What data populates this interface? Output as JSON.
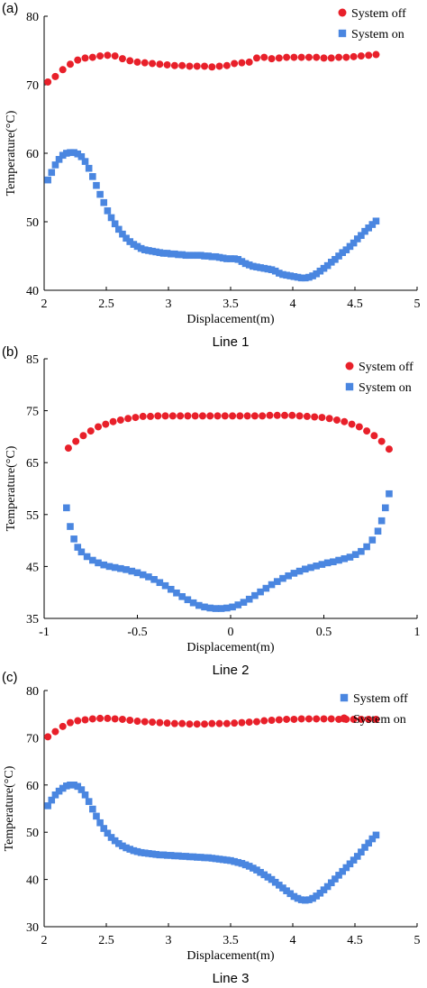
{
  "colors": {
    "red": "#e8202a",
    "blue": "#4a86e0",
    "axis": "#000000"
  },
  "chart_data": [
    {
      "type": "scatter",
      "panel_label": "(a)",
      "caption": "Line 1",
      "xlabel": "Displacement(m)",
      "ylabel": "Temperature(°C)",
      "xlim": [
        2,
        5
      ],
      "ylim": [
        40,
        80
      ],
      "xticks": [
        2,
        2.5,
        3,
        3.5,
        4,
        4.5,
        5
      ],
      "xtick_labels": [
        "2",
        "2.5",
        "3",
        "3.5",
        "4",
        "4.5",
        "5"
      ],
      "yticks": [
        40,
        50,
        60,
        70,
        80
      ],
      "ytick_labels": [
        "40",
        "50",
        "60",
        "70",
        "80"
      ],
      "legend_position": "top-right",
      "series": [
        {
          "name": "System off",
          "marker": "circle",
          "color": "#e8202a",
          "x": [
            2.03,
            2.09,
            2.15,
            2.21,
            2.27,
            2.33,
            2.39,
            2.45,
            2.51,
            2.57,
            2.63,
            2.69,
            2.75,
            2.81,
            2.87,
            2.93,
            2.99,
            3.05,
            3.11,
            3.17,
            3.23,
            3.29,
            3.35,
            3.41,
            3.47,
            3.53,
            3.59,
            3.65,
            3.71,
            3.77,
            3.83,
            3.89,
            3.95,
            4.01,
            4.07,
            4.13,
            4.19,
            4.25,
            4.31,
            4.37,
            4.43,
            4.49,
            4.55,
            4.61,
            4.67
          ],
          "y": [
            70.4,
            71.2,
            72.2,
            73.0,
            73.6,
            73.9,
            74.0,
            74.2,
            74.3,
            74.2,
            73.8,
            73.5,
            73.3,
            73.2,
            73.1,
            73.0,
            72.9,
            72.8,
            72.8,
            72.7,
            72.7,
            72.7,
            72.6,
            72.7,
            72.8,
            73.1,
            73.2,
            73.3,
            73.9,
            74.0,
            73.8,
            73.9,
            74.0,
            74.0,
            74.0,
            74.0,
            74.0,
            73.9,
            73.9,
            74.0,
            74.0,
            74.1,
            74.2,
            74.3,
            74.4
          ]
        },
        {
          "name": "System on",
          "marker": "square",
          "color": "#4a86e0",
          "x": [
            2.03,
            2.06,
            2.09,
            2.12,
            2.15,
            2.18,
            2.21,
            2.24,
            2.27,
            2.3,
            2.33,
            2.36,
            2.39,
            2.42,
            2.45,
            2.48,
            2.51,
            2.54,
            2.57,
            2.6,
            2.63,
            2.66,
            2.69,
            2.72,
            2.75,
            2.78,
            2.81,
            2.84,
            2.87,
            2.9,
            2.93,
            2.96,
            2.99,
            3.02,
            3.05,
            3.08,
            3.11,
            3.14,
            3.17,
            3.2,
            3.23,
            3.26,
            3.29,
            3.32,
            3.35,
            3.38,
            3.41,
            3.44,
            3.47,
            3.5,
            3.53,
            3.56,
            3.59,
            3.62,
            3.65,
            3.68,
            3.71,
            3.74,
            3.77,
            3.8,
            3.83,
            3.86,
            3.89,
            3.92,
            3.95,
            3.98,
            4.01,
            4.04,
            4.07,
            4.1,
            4.13,
            4.16,
            4.19,
            4.22,
            4.25,
            4.28,
            4.31,
            4.34,
            4.37,
            4.4,
            4.43,
            4.46,
            4.49,
            4.52,
            4.55,
            4.58,
            4.61,
            4.64,
            4.67
          ],
          "y": [
            56.1,
            57.2,
            58.3,
            59.1,
            59.7,
            60.0,
            60.1,
            60.1,
            59.9,
            59.5,
            58.8,
            57.8,
            56.6,
            55.3,
            54.0,
            52.8,
            51.6,
            50.6,
            49.7,
            48.9,
            48.2,
            47.6,
            47.1,
            46.7,
            46.4,
            46.1,
            45.9,
            45.8,
            45.7,
            45.6,
            45.5,
            45.4,
            45.4,
            45.3,
            45.3,
            45.2,
            45.2,
            45.1,
            45.1,
            45.1,
            45.1,
            45.1,
            45.0,
            45.0,
            44.9,
            44.9,
            44.8,
            44.7,
            44.6,
            44.6,
            44.6,
            44.5,
            44.2,
            43.9,
            43.7,
            43.5,
            43.4,
            43.3,
            43.2,
            43.1,
            43.0,
            42.8,
            42.5,
            42.3,
            42.2,
            42.1,
            42.0,
            41.9,
            41.8,
            41.8,
            41.9,
            42.1,
            42.4,
            42.8,
            43.2,
            43.6,
            44.1,
            44.5,
            45.0,
            45.5,
            45.9,
            46.4,
            46.9,
            47.5,
            48.0,
            48.6,
            49.1,
            49.6,
            50.1
          ]
        }
      ]
    },
    {
      "type": "scatter",
      "panel_label": "(b)",
      "caption": "Line 2",
      "xlabel": "Displacement(m)",
      "ylabel": "Temperature(°C)",
      "xlim": [
        -1,
        1
      ],
      "ylim": [
        35,
        85
      ],
      "xticks": [
        -1,
        -0.5,
        0,
        0.5,
        1
      ],
      "xtick_labels": [
        "-1",
        "-0.5",
        "0",
        "0.5",
        "1"
      ],
      "yticks": [
        35,
        45,
        55,
        65,
        75,
        85
      ],
      "ytick_labels": [
        "35",
        "45",
        "55",
        "65",
        "75",
        "85"
      ],
      "legend_position": "top-right",
      "series": [
        {
          "name": "System off",
          "marker": "circle",
          "color": "#e8202a",
          "x": [
            -0.87,
            -0.83,
            -0.79,
            -0.75,
            -0.71,
            -0.67,
            -0.63,
            -0.59,
            -0.55,
            -0.51,
            -0.47,
            -0.43,
            -0.39,
            -0.35,
            -0.31,
            -0.27,
            -0.23,
            -0.19,
            -0.15,
            -0.11,
            -0.07,
            -0.03,
            0.01,
            0.05,
            0.09,
            0.13,
            0.17,
            0.21,
            0.25,
            0.29,
            0.33,
            0.37,
            0.41,
            0.45,
            0.49,
            0.53,
            0.57,
            0.61,
            0.65,
            0.69,
            0.73,
            0.77,
            0.81,
            0.85
          ],
          "y": [
            67.8,
            69.1,
            70.2,
            71.1,
            71.9,
            72.4,
            72.9,
            73.2,
            73.5,
            73.7,
            73.9,
            73.9,
            74.0,
            74.0,
            74.0,
            74.0,
            74.0,
            74.0,
            74.0,
            74.0,
            74.0,
            74.0,
            74.0,
            74.0,
            74.0,
            74.0,
            74.0,
            74.1,
            74.1,
            74.1,
            74.1,
            74.0,
            73.9,
            73.8,
            73.7,
            73.5,
            73.2,
            72.9,
            72.4,
            71.9,
            71.1,
            70.2,
            69.1,
            67.6
          ]
        },
        {
          "name": "System on",
          "marker": "square",
          "color": "#4a86e0",
          "x": [
            -0.88,
            -0.86,
            -0.84,
            -0.82,
            -0.8,
            -0.77,
            -0.74,
            -0.71,
            -0.68,
            -0.65,
            -0.62,
            -0.59,
            -0.56,
            -0.53,
            -0.5,
            -0.47,
            -0.44,
            -0.41,
            -0.38,
            -0.35,
            -0.32,
            -0.29,
            -0.26,
            -0.23,
            -0.2,
            -0.17,
            -0.14,
            -0.11,
            -0.08,
            -0.05,
            -0.02,
            0.01,
            0.04,
            0.07,
            0.1,
            0.13,
            0.16,
            0.19,
            0.22,
            0.25,
            0.28,
            0.31,
            0.34,
            0.37,
            0.4,
            0.43,
            0.46,
            0.49,
            0.52,
            0.55,
            0.58,
            0.61,
            0.64,
            0.67,
            0.7,
            0.73,
            0.76,
            0.79,
            0.81,
            0.83,
            0.85
          ],
          "y": [
            56.3,
            52.7,
            50.3,
            48.7,
            47.8,
            46.9,
            46.2,
            45.7,
            45.3,
            45.0,
            44.8,
            44.6,
            44.4,
            44.1,
            43.8,
            43.4,
            43.0,
            42.5,
            41.9,
            41.3,
            40.6,
            39.9,
            39.2,
            38.6,
            38.0,
            37.5,
            37.2,
            37.0,
            36.9,
            36.9,
            37.0,
            37.2,
            37.6,
            38.1,
            38.7,
            39.4,
            40.1,
            40.8,
            41.5,
            42.1,
            42.7,
            43.2,
            43.7,
            44.1,
            44.5,
            44.8,
            45.1,
            45.4,
            45.7,
            45.9,
            46.2,
            46.5,
            46.8,
            47.3,
            47.9,
            48.8,
            50.1,
            51.8,
            53.8,
            56.3,
            59.0
          ]
        }
      ]
    },
    {
      "type": "scatter",
      "panel_label": "(c)",
      "caption": "Line 3",
      "xlabel": "Displacement(m)",
      "ylabel": "Temperature(°C)",
      "xlim": [
        2,
        5
      ],
      "ylim": [
        30,
        80
      ],
      "xticks": [
        2,
        2.5,
        3,
        3.5,
        4,
        4.5,
        5
      ],
      "xtick_labels": [
        "2",
        "2.5",
        "3",
        "3.5",
        "4",
        "4.5",
        "5"
      ],
      "yticks": [
        30,
        40,
        50,
        60,
        70,
        80
      ],
      "ytick_labels": [
        "30",
        "40",
        "50",
        "60",
        "70",
        "80"
      ],
      "legend_position": "top-right",
      "series": [
        {
          "name": "System off",
          "marker": "square",
          "color": "#4a86e0",
          "x": [
            2.03,
            2.06,
            2.09,
            2.12,
            2.15,
            2.18,
            2.21,
            2.24,
            2.27,
            2.3,
            2.33,
            2.36,
            2.39,
            2.42,
            2.45,
            2.48,
            2.51,
            2.54,
            2.57,
            2.6,
            2.63,
            2.66,
            2.69,
            2.72,
            2.75,
            2.78,
            2.81,
            2.84,
            2.87,
            2.9,
            2.93,
            2.96,
            2.99,
            3.02,
            3.05,
            3.08,
            3.11,
            3.14,
            3.17,
            3.2,
            3.23,
            3.26,
            3.29,
            3.32,
            3.35,
            3.38,
            3.41,
            3.44,
            3.47,
            3.5,
            3.53,
            3.56,
            3.59,
            3.62,
            3.65,
            3.68,
            3.71,
            3.74,
            3.77,
            3.8,
            3.83,
            3.86,
            3.89,
            3.92,
            3.95,
            3.98,
            4.01,
            4.04,
            4.07,
            4.1,
            4.13,
            4.16,
            4.19,
            4.22,
            4.25,
            4.28,
            4.31,
            4.34,
            4.37,
            4.4,
            4.43,
            4.46,
            4.49,
            4.52,
            4.55,
            4.58,
            4.61,
            4.64,
            4.67
          ],
          "y": [
            55.6,
            56.8,
            57.9,
            58.7,
            59.3,
            59.8,
            60.0,
            60.0,
            59.7,
            59.0,
            57.9,
            56.5,
            54.9,
            53.4,
            52.0,
            50.8,
            49.8,
            48.9,
            48.2,
            47.6,
            47.1,
            46.7,
            46.4,
            46.1,
            45.9,
            45.7,
            45.6,
            45.5,
            45.4,
            45.3,
            45.2,
            45.2,
            45.1,
            45.1,
            45.0,
            45.0,
            44.9,
            44.9,
            44.8,
            44.8,
            44.7,
            44.7,
            44.6,
            44.6,
            44.5,
            44.4,
            44.3,
            44.2,
            44.1,
            44.0,
            43.8,
            43.6,
            43.4,
            43.1,
            42.8,
            42.4,
            42.0,
            41.5,
            41.0,
            40.5,
            40.0,
            39.4,
            38.8,
            38.2,
            37.6,
            37.0,
            36.4,
            36.0,
            35.7,
            35.6,
            35.7,
            36.0,
            36.5,
            37.1,
            37.8,
            38.5,
            39.3,
            40.1,
            40.9,
            41.7,
            42.5,
            43.3,
            44.1,
            44.9,
            45.8,
            46.8,
            47.7,
            48.6,
            49.4
          ]
        },
        {
          "name": "System on",
          "marker": "circle",
          "color": "#e8202a",
          "x": [
            2.03,
            2.09,
            2.15,
            2.21,
            2.27,
            2.33,
            2.39,
            2.45,
            2.51,
            2.57,
            2.63,
            2.69,
            2.75,
            2.81,
            2.87,
            2.93,
            2.99,
            3.05,
            3.11,
            3.17,
            3.23,
            3.29,
            3.35,
            3.41,
            3.47,
            3.53,
            3.59,
            3.65,
            3.71,
            3.77,
            3.83,
            3.89,
            3.95,
            4.01,
            4.07,
            4.13,
            4.19,
            4.25,
            4.31,
            4.37,
            4.43,
            4.49,
            4.55,
            4.61,
            4.67
          ],
          "y": [
            70.2,
            71.3,
            72.4,
            73.2,
            73.6,
            73.8,
            74.0,
            74.1,
            74.1,
            74.0,
            73.9,
            73.7,
            73.5,
            73.4,
            73.3,
            73.2,
            73.1,
            73.0,
            73.0,
            72.9,
            72.9,
            72.9,
            73.0,
            73.0,
            73.0,
            73.1,
            73.2,
            73.3,
            73.4,
            73.6,
            73.7,
            73.8,
            73.9,
            73.9,
            74.0,
            74.0,
            74.0,
            74.0,
            74.0,
            73.9,
            73.9,
            73.9,
            73.9,
            73.9,
            73.9
          ]
        }
      ]
    }
  ]
}
